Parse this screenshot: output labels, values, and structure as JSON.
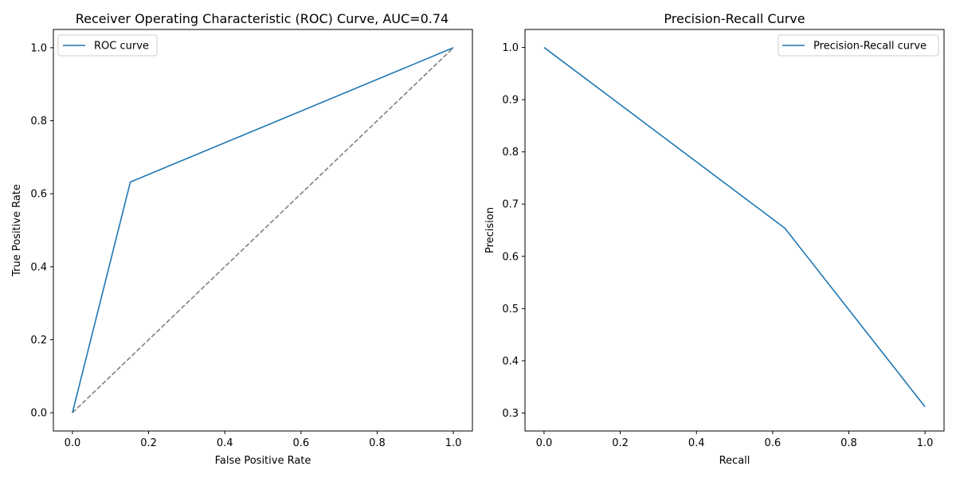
{
  "chart_data": [
    {
      "type": "line",
      "title": "Receiver Operating Characteristic (ROC) Curve, AUC=0.74",
      "xlabel": "False Positive Rate",
      "ylabel": "True Positive Rate",
      "xlim": [
        -0.05,
        1.05
      ],
      "ylim": [
        -0.05,
        1.05
      ],
      "xticks": [
        0.0,
        0.2,
        0.4,
        0.6,
        0.8,
        1.0
      ],
      "yticks": [
        0.0,
        0.2,
        0.4,
        0.6,
        0.8,
        1.0
      ],
      "xtick_labels": [
        "0.0",
        "0.2",
        "0.4",
        "0.6",
        "0.8",
        "1.0"
      ],
      "ytick_labels": [
        "0.0",
        "0.2",
        "0.4",
        "0.6",
        "0.8",
        "1.0"
      ],
      "grid": false,
      "legend_position": "top-left",
      "series": [
        {
          "name": "ROC curve",
          "color": "#1f77b4",
          "style": "solid",
          "x": [
            0.0,
            0.152,
            1.0
          ],
          "y": [
            0.0,
            0.632,
            1.0
          ]
        },
        {
          "color": "#808080",
          "style": "dashed",
          "x": [
            0.0,
            1.0
          ],
          "y": [
            0.0,
            1.0
          ]
        }
      ]
    },
    {
      "type": "line",
      "title": "Precision-Recall Curve",
      "xlabel": "Recall",
      "ylabel": "Precision",
      "xlim": [
        -0.05,
        1.05
      ],
      "ylim": [
        0.2656,
        1.0344
      ],
      "xticks": [
        0.0,
        0.2,
        0.4,
        0.6,
        0.8,
        1.0
      ],
      "yticks": [
        0.3,
        0.4,
        0.5,
        0.6,
        0.7,
        0.8,
        0.9,
        1.0
      ],
      "xtick_labels": [
        "0.0",
        "0.2",
        "0.4",
        "0.6",
        "0.8",
        "1.0"
      ],
      "ytick_labels": [
        "0.3",
        "0.4",
        "0.5",
        "0.6",
        "0.7",
        "0.8",
        "0.9",
        "1.0"
      ],
      "grid": false,
      "legend_position": "top-right",
      "series": [
        {
          "name": "Precision-Recall curve",
          "color": "#1f77b4",
          "style": "solid",
          "x": [
            0.0,
            0.632,
            1.0
          ],
          "y": [
            1.0,
            0.654,
            0.312
          ]
        }
      ]
    }
  ]
}
